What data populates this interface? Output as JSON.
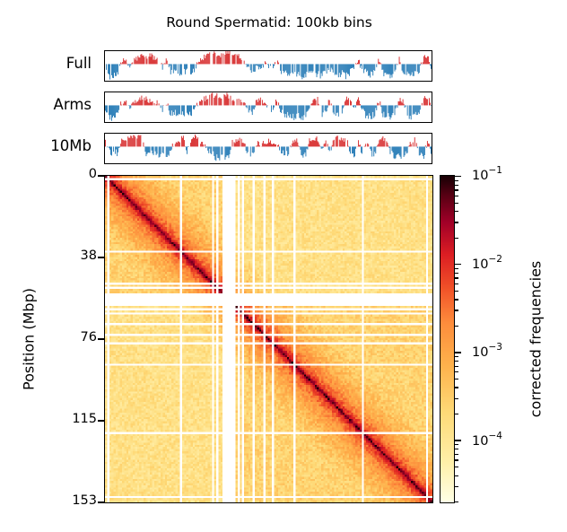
{
  "chart_data": {
    "type": "heatmap",
    "title": "Round Spermatid: 100kb bins",
    "ylabel": "Position (Mbp)",
    "xlabel": "",
    "ylim": [
      0,
      153
    ],
    "y_ticks": [
      "0",
      "38",
      "76",
      "115",
      "153"
    ],
    "y_tick_values": [
      0,
      38,
      76,
      115,
      153
    ],
    "colormap": "YlOrRd",
    "colorbar": {
      "label": "corrected frequencies",
      "scale": "log",
      "range": [
        2e-05,
        0.1
      ],
      "ticks": [
        {
          "base": "10",
          "exp": "−1",
          "value": 0.1
        },
        {
          "base": "10",
          "exp": "−2",
          "value": 0.01
        },
        {
          "base": "10",
          "exp": "−3",
          "value": 0.001
        },
        {
          "base": "10",
          "exp": "−4",
          "value": 0.0001
        }
      ]
    },
    "masked_regions_mbp": [
      [
        55.5,
        59.5
      ]
    ],
    "masked_lines_mbp": [
      1.5,
      35.5,
      50.5,
      52,
      60.5,
      62,
      64,
      69,
      74,
      78,
      88,
      120,
      150
    ],
    "tracks": [
      {
        "name": "Full",
        "positive_color": "#d62728",
        "negative_color": "#1f77b4",
        "profile": [
          -0.3,
          -0.8,
          -0.9,
          -0.6,
          0.3,
          0.2,
          -0.2,
          0.4,
          0.5,
          0.7,
          0.6,
          0.8,
          0.5,
          0.4,
          -0.3,
          0.3,
          -0.5,
          -0.4,
          -0.6,
          -0.5,
          -0.4,
          -0.6,
          -0.3,
          0.3,
          0.5,
          0.7,
          0.8,
          0.9,
          0.6,
          0.9,
          1.0,
          0.8,
          0.9,
          0.6,
          0.3,
          -0.4,
          -0.5,
          -0.3,
          -0.4,
          0.2,
          -0.3,
          -0.2,
          0.2,
          -0.4,
          -0.6,
          -0.7,
          -0.8,
          -0.7,
          -0.9,
          -0.8,
          -0.6,
          -0.5,
          -0.7,
          -0.8,
          -0.6,
          -0.4,
          -0.5,
          -0.7,
          -0.6,
          -0.8,
          -0.5,
          -0.3,
          0.3,
          -0.4,
          -0.6,
          -0.7,
          -0.5,
          0.4,
          -0.6,
          -0.7,
          -0.8,
          -0.5,
          0.5,
          -0.6,
          -0.7,
          -0.8,
          -0.6,
          -0.4,
          0.6,
          0.7,
          -0.3
        ]
      },
      {
        "name": "Arms",
        "positive_color": "#d62728",
        "negative_color": "#1f77b4",
        "profile": [
          -0.3,
          -0.8,
          -0.9,
          -0.5,
          0.3,
          0.3,
          -0.2,
          0.4,
          0.3,
          0.6,
          0.5,
          0.4,
          0.3,
          0.2,
          -0.3,
          0.3,
          -0.6,
          -0.5,
          -0.7,
          -0.6,
          -0.5,
          -0.7,
          -0.3,
          0.3,
          0.5,
          0.7,
          0.8,
          0.9,
          0.6,
          1.0,
          0.9,
          0.4,
          0.6,
          0.3,
          0.2,
          -0.3,
          -0.5,
          0.3,
          0.5,
          0.3,
          -0.3,
          -0.2,
          0.4,
          -0.5,
          -0.6,
          -0.7,
          -0.8,
          -0.7,
          -0.9,
          -0.6,
          -0.3,
          0.4,
          0.5,
          -0.6,
          -0.5,
          0.6,
          -0.5,
          -0.7,
          -0.6,
          0.7,
          0.4,
          -0.3,
          0.6,
          -0.4,
          -0.7,
          -0.8,
          -0.6,
          0.5,
          -0.6,
          -0.7,
          -0.8,
          -0.5,
          0.5,
          0.4,
          -0.7,
          -0.8,
          -0.6,
          -0.4,
          0.6,
          0.7,
          -0.3
        ]
      },
      {
        "name": "10Mb",
        "positive_color": "#d62728",
        "negative_color": "#1f77b4",
        "profile": [
          0.6,
          -0.4,
          -0.5,
          -0.4,
          0.5,
          0.7,
          0.8,
          0.9,
          0.8,
          0.7,
          -0.4,
          -0.5,
          -0.3,
          -0.6,
          -0.5,
          -0.6,
          -0.3,
          0.4,
          0.3,
          0.8,
          -0.5,
          0.7,
          0.8,
          0.5,
          0.3,
          -0.3,
          -0.4,
          -0.7,
          -0.8,
          -0.6,
          -0.8,
          0.3,
          0.5,
          0.6,
          0.4,
          -0.6,
          -0.5,
          0.3,
          0.2,
          0.4,
          0.5,
          0.4,
          0.3,
          -0.3,
          -0.5,
          -0.4,
          0.4,
          0.6,
          -0.5,
          -0.6,
          0.5,
          0.3,
          0.7,
          -0.4,
          0.4,
          -0.5,
          0.6,
          0.7,
          0.5,
          0.8,
          -0.5,
          -0.6,
          0.4,
          -0.6,
          0.5,
          -0.4,
          -0.5,
          0.6,
          0.7,
          0.5,
          -0.5,
          -0.6,
          -0.7,
          -0.5,
          -0.4,
          0.5,
          0.7,
          -0.6,
          -0.7,
          0.6,
          -0.8
        ]
      }
    ]
  }
}
